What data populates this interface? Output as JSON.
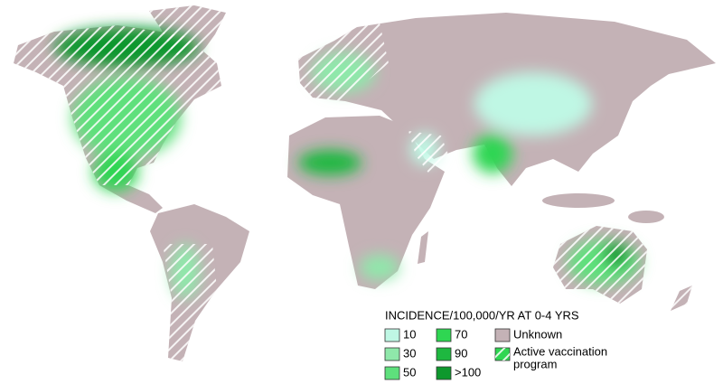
{
  "legend": {
    "title": "INCIDENCE/100,000/YR AT 0-4 YRS",
    "items": [
      {
        "label": "10",
        "color": "#bff7e4"
      },
      {
        "label": "30",
        "color": "#8fe8aa"
      },
      {
        "label": "50",
        "color": "#5ee07c"
      },
      {
        "label": "70",
        "color": "#2fd652"
      },
      {
        "label": "90",
        "color": "#1eb840"
      },
      {
        "label": ">100",
        "color": "#0e982d"
      }
    ],
    "unknown": {
      "label": "Unknown",
      "color": "#c4b2b6"
    },
    "vaccination": {
      "lines": [
        "Active vaccination",
        "program"
      ]
    }
  }
}
